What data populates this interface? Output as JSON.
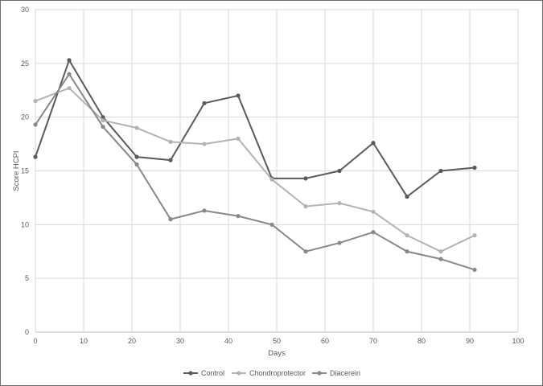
{
  "chart_data": {
    "type": "line",
    "title": "",
    "xlabel": "Days",
    "ylabel": "Score HCPI",
    "xlim": [
      0,
      100
    ],
    "ylim": [
      0,
      30
    ],
    "xticks": [
      0,
      10,
      20,
      30,
      40,
      50,
      60,
      70,
      80,
      90,
      100
    ],
    "yticks": [
      0,
      5,
      10,
      15,
      20,
      25,
      30
    ],
    "grid": true,
    "legend_position": "bottom",
    "series": [
      {
        "name": "Control",
        "color": "#5a5a5a",
        "x": [
          0,
          7,
          14,
          21,
          28,
          35,
          42,
          49,
          56,
          63,
          70,
          77,
          84,
          91
        ],
        "y": [
          16.3,
          25.3,
          20.0,
          16.3,
          16.0,
          21.3,
          22.0,
          14.3,
          14.3,
          15.0,
          17.6,
          12.6,
          15.0,
          15.3
        ]
      },
      {
        "name": "Chondroprotector",
        "color": "#b3b3b3",
        "x": [
          0,
          7,
          14,
          21,
          28,
          35,
          42,
          49,
          56,
          63,
          70,
          77,
          84,
          91
        ],
        "y": [
          21.5,
          22.7,
          19.7,
          19.0,
          17.7,
          17.5,
          18.0,
          14.2,
          11.7,
          12.0,
          11.2,
          9.0,
          7.5,
          9.0
        ]
      },
      {
        "name": "Diacerein",
        "color": "#888888",
        "x": [
          0,
          7,
          14,
          21,
          28,
          35,
          42,
          49,
          56,
          63,
          70,
          77,
          84,
          91
        ],
        "y": [
          19.3,
          24.0,
          19.1,
          15.6,
          10.5,
          11.3,
          10.8,
          10.0,
          7.5,
          8.3,
          9.3,
          7.5,
          6.8,
          5.8
        ]
      }
    ]
  }
}
